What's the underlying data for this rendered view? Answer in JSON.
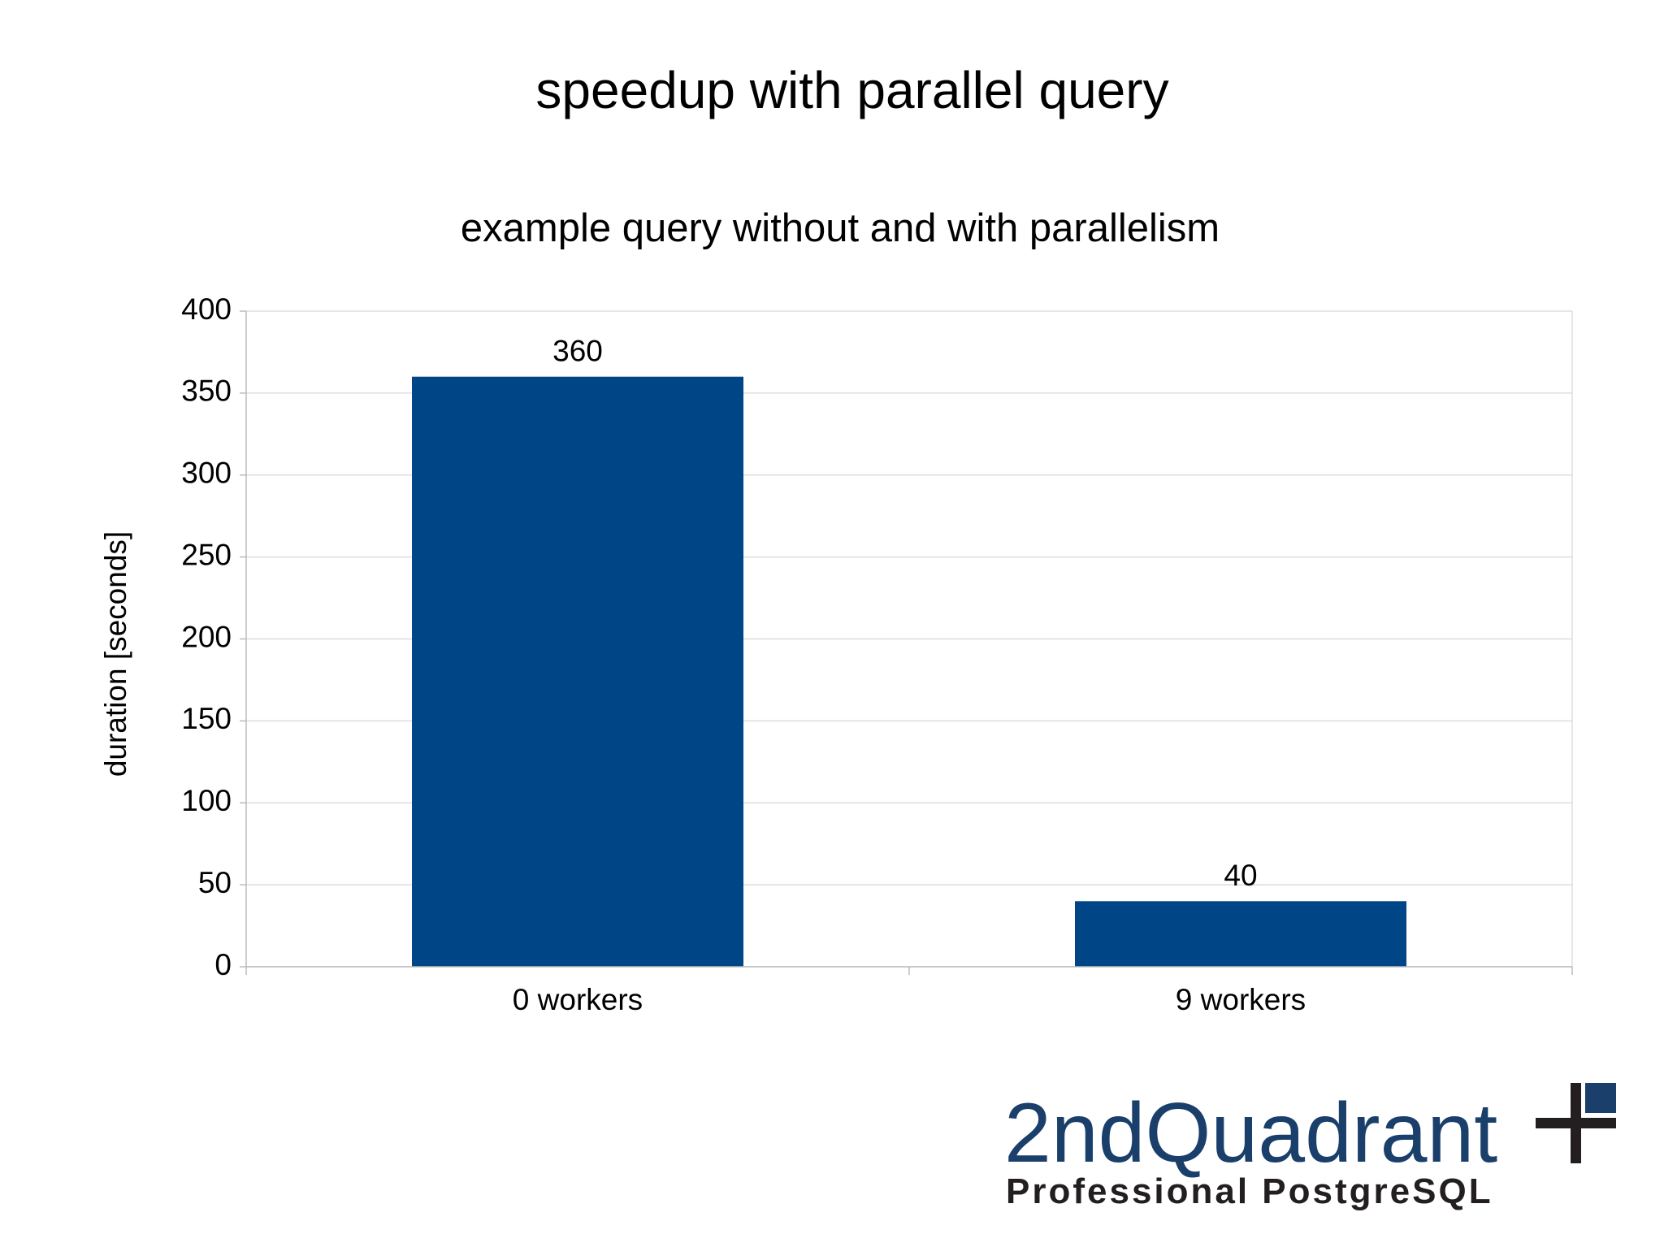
{
  "chart_data": {
    "type": "bar",
    "title": "speedup with parallel query",
    "subtitle": "example query without and with parallelism",
    "y_label": "duration [seconds]",
    "categories": [
      "0 workers",
      "9 workers"
    ],
    "values": [
      360,
      40
    ],
    "color": "#004586",
    "ylim": [
      0,
      400
    ],
    "yticks": [
      0,
      50,
      100,
      150,
      200,
      250,
      300,
      350,
      400
    ],
    "grid": true
  },
  "logo": {
    "name": "2ndQuadrant",
    "tagline": "Professional PostgreSQL"
  }
}
